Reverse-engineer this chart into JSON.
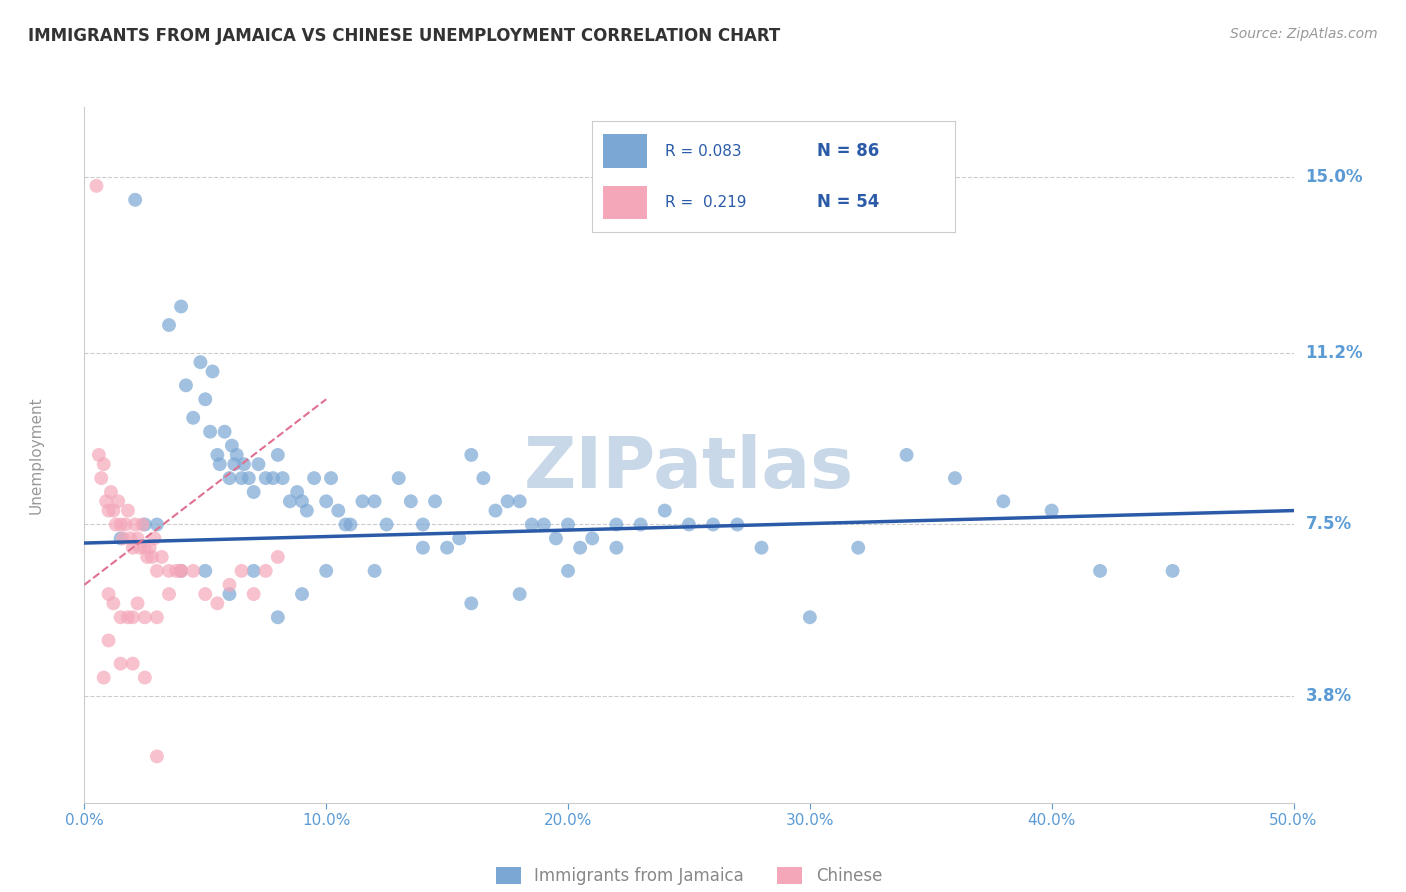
{
  "title": "IMMIGRANTS FROM JAMAICA VS CHINESE UNEMPLOYMENT CORRELATION CHART",
  "source": "Source: ZipAtlas.com",
  "ylabel": "Unemployment",
  "yticks": [
    3.8,
    7.5,
    11.2,
    15.0
  ],
  "ytick_labels": [
    "3.8%",
    "7.5%",
    "11.2%",
    "15.0%"
  ],
  "xticks": [
    0.0,
    10.0,
    20.0,
    30.0,
    40.0,
    50.0
  ],
  "xtick_labels": [
    "0.0%",
    "10.0%",
    "20.0%",
    "30.0%",
    "40.0%",
    "50.0%"
  ],
  "xlim": [
    0.0,
    50.0
  ],
  "ylim": [
    1.5,
    16.5
  ],
  "legend_label_1": "Immigrants from Jamaica",
  "legend_label_2": "Chinese",
  "r1": "0.083",
  "n1": "86",
  "r2": "0.219",
  "n2": "54",
  "blue_color": "#7ba7d4",
  "pink_color": "#f4a7b9",
  "blue_line_color": "#2b5ba8",
  "pink_line_color": "#e07090",
  "grid_color": "#cccccc",
  "title_color": "#333333",
  "axis_label_color": "#5b9bd5",
  "watermark_color": "#c8d8e8",
  "background_color": "#ffffff",
  "blue_scatter_x": [
    2.1,
    3.5,
    4.0,
    4.2,
    4.5,
    4.8,
    5.0,
    5.2,
    5.3,
    5.5,
    5.6,
    5.8,
    6.0,
    6.1,
    6.2,
    6.3,
    6.5,
    6.6,
    6.8,
    7.0,
    7.2,
    7.5,
    7.8,
    8.0,
    8.2,
    8.5,
    8.8,
    9.0,
    9.2,
    9.5,
    10.0,
    10.2,
    10.5,
    10.8,
    11.0,
    11.5,
    12.0,
    12.5,
    13.0,
    13.5,
    14.0,
    14.5,
    15.0,
    15.5,
    16.0,
    16.5,
    17.0,
    17.5,
    18.0,
    18.5,
    19.0,
    19.5,
    20.0,
    20.5,
    21.0,
    22.0,
    23.0,
    24.0,
    25.0,
    26.0,
    27.0,
    28.0,
    30.0,
    32.0,
    34.0,
    36.0,
    38.0,
    40.0,
    1.5,
    2.5,
    3.0,
    4.0,
    5.0,
    6.0,
    7.0,
    8.0,
    9.0,
    10.0,
    12.0,
    14.0,
    16.0,
    18.0,
    20.0,
    22.0,
    42.0,
    45.0
  ],
  "blue_scatter_y": [
    14.5,
    11.8,
    12.2,
    10.5,
    9.8,
    11.0,
    10.2,
    9.5,
    10.8,
    9.0,
    8.8,
    9.5,
    8.5,
    9.2,
    8.8,
    9.0,
    8.5,
    8.8,
    8.5,
    8.2,
    8.8,
    8.5,
    8.5,
    9.0,
    8.5,
    8.0,
    8.2,
    8.0,
    7.8,
    8.5,
    8.0,
    8.5,
    7.8,
    7.5,
    7.5,
    8.0,
    8.0,
    7.5,
    8.5,
    8.0,
    7.5,
    8.0,
    7.0,
    7.2,
    9.0,
    8.5,
    7.8,
    8.0,
    8.0,
    7.5,
    7.5,
    7.2,
    7.5,
    7.0,
    7.2,
    7.5,
    7.5,
    7.8,
    7.5,
    7.5,
    7.5,
    7.0,
    5.5,
    7.0,
    9.0,
    8.5,
    8.0,
    7.8,
    7.2,
    7.5,
    7.5,
    6.5,
    6.5,
    6.0,
    6.5,
    5.5,
    6.0,
    6.5,
    6.5,
    7.0,
    5.8,
    6.0,
    6.5,
    7.0,
    6.5,
    6.5
  ],
  "pink_scatter_x": [
    0.5,
    0.6,
    0.7,
    0.8,
    0.9,
    1.0,
    1.1,
    1.2,
    1.3,
    1.4,
    1.5,
    1.6,
    1.7,
    1.8,
    1.9,
    2.0,
    2.1,
    2.2,
    2.3,
    2.4,
    2.5,
    2.6,
    2.7,
    2.8,
    2.9,
    3.0,
    3.2,
    3.5,
    3.8,
    4.0,
    4.5,
    5.0,
    5.5,
    6.0,
    6.5,
    7.0,
    7.5,
    8.0,
    1.0,
    1.2,
    1.5,
    1.8,
    2.0,
    2.2,
    2.5,
    3.0,
    3.5,
    4.0,
    0.8,
    1.0,
    1.5,
    2.0,
    2.5,
    3.0
  ],
  "pink_scatter_y": [
    14.8,
    9.0,
    8.5,
    8.8,
    8.0,
    7.8,
    8.2,
    7.8,
    7.5,
    8.0,
    7.5,
    7.2,
    7.5,
    7.8,
    7.2,
    7.0,
    7.5,
    7.2,
    7.0,
    7.5,
    7.0,
    6.8,
    7.0,
    6.8,
    7.2,
    6.5,
    6.8,
    6.5,
    6.5,
    6.5,
    6.5,
    6.0,
    5.8,
    6.2,
    6.5,
    6.0,
    6.5,
    6.8,
    6.0,
    5.8,
    5.5,
    5.5,
    5.5,
    5.8,
    5.5,
    5.5,
    6.0,
    6.5,
    4.2,
    5.0,
    4.5,
    4.5,
    4.2,
    2.5
  ],
  "blue_trend_x": [
    0.0,
    50.0
  ],
  "blue_trend_y": [
    7.1,
    7.8
  ],
  "pink_trend_x": [
    0.0,
    10.0
  ],
  "pink_trend_y": [
    6.2,
    10.2
  ]
}
